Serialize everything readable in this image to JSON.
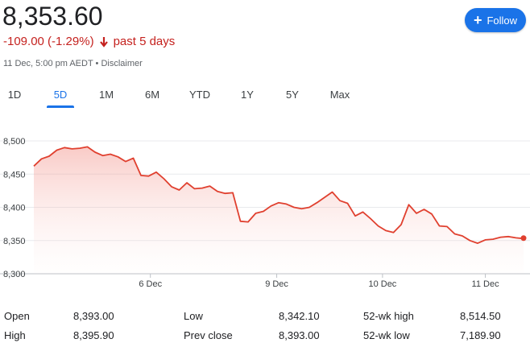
{
  "header": {
    "price": "8,353.60",
    "change": "-109.00 (-1.29%)",
    "change_period": "past 5 days",
    "timestamp": "11 Dec, 5:00 pm AEDT",
    "separator": "•",
    "disclaimer": "Disclaimer",
    "follow_label": "Follow"
  },
  "colors": {
    "down": "#c5221f",
    "line": "#e0402f",
    "accent": "#1a73e8"
  },
  "tabs": [
    {
      "label": "1D",
      "active": false
    },
    {
      "label": "5D",
      "active": true
    },
    {
      "label": "1M",
      "active": false
    },
    {
      "label": "6M",
      "active": false
    },
    {
      "label": "YTD",
      "active": false
    },
    {
      "label": "1Y",
      "active": false
    },
    {
      "label": "5Y",
      "active": false
    },
    {
      "label": "Max",
      "active": false
    }
  ],
  "chart_data": {
    "type": "area",
    "y_ticks": [
      "8,500",
      "8,450",
      "8,400",
      "8,350",
      "8,300"
    ],
    "y_tick_values": [
      8500,
      8450,
      8400,
      8350,
      8300
    ],
    "ylim": [
      8300,
      8500
    ],
    "x_labels": [
      "6 Dec",
      "9 Dec",
      "10 Dec",
      "11 Dec"
    ],
    "x_label_positions": [
      0.238,
      0.496,
      0.712,
      0.922
    ],
    "grid": true,
    "series": [
      {
        "values": [
          8462,
          8473,
          8477,
          8486,
          8490,
          8488,
          8489,
          8491,
          8483,
          8478,
          8480,
          8476,
          8469,
          8474,
          8448,
          8447,
          8453,
          8443,
          8431,
          8426,
          8437,
          8428,
          8429,
          8432,
          8424,
          8421,
          8422,
          8379,
          8378,
          8391,
          8394,
          8402,
          8407,
          8405,
          8400,
          8398,
          8400,
          8407,
          8415,
          8423,
          8410,
          8406,
          8387,
          8393,
          8383,
          8372,
          8365,
          8362,
          8374,
          8404,
          8391,
          8397,
          8390,
          8372,
          8371,
          8360,
          8357,
          8350,
          8346,
          8351,
          8352,
          8355,
          8356,
          8354,
          8353
        ],
        "last_value": 8353.6
      }
    ]
  },
  "stats": [
    {
      "label": "Open",
      "value": "8,393.00"
    },
    {
      "label": "High",
      "value": "8,395.90"
    },
    {
      "label": "Low",
      "value": "8,342.10"
    },
    {
      "label": "Prev close",
      "value": "8,393.00"
    },
    {
      "label": "52-wk high",
      "value": "8,514.50"
    },
    {
      "label": "52-wk low",
      "value": "7,189.90"
    }
  ]
}
